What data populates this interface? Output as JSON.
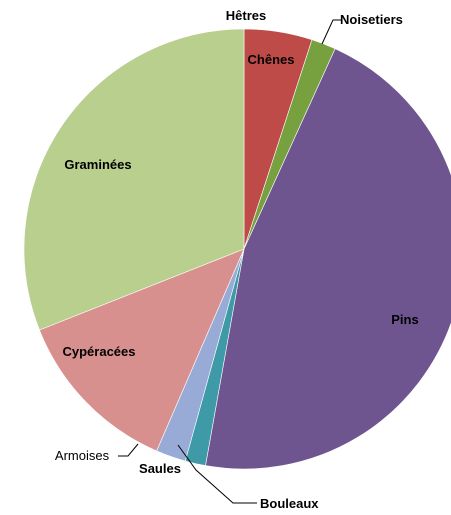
{
  "chart_data": {
    "type": "pie",
    "title": "",
    "slices": [
      {
        "label": "Hêtres",
        "value": 0.0,
        "color": "#c0504d"
      },
      {
        "label": "Chênes",
        "value": 5.0,
        "color": "#be4b48"
      },
      {
        "label": "Noisetiers",
        "value": 1.8,
        "color": "#77a03e"
      },
      {
        "label": "Pins",
        "value": 46.0,
        "color": "#6f5590"
      },
      {
        "label": "Bouleaux",
        "value": 1.5,
        "color": "#3d9aa6"
      },
      {
        "label": "Saules",
        "value": 0.0,
        "color": "#4bacc6"
      },
      {
        "label": "Armoises",
        "value": 2.2,
        "color": "#98aad6"
      },
      {
        "label": "Cypéracées",
        "value": 12.5,
        "color": "#d8908f"
      },
      {
        "label": "Graminées",
        "value": 31.0,
        "color": "#b8cf8e"
      }
    ]
  }
}
